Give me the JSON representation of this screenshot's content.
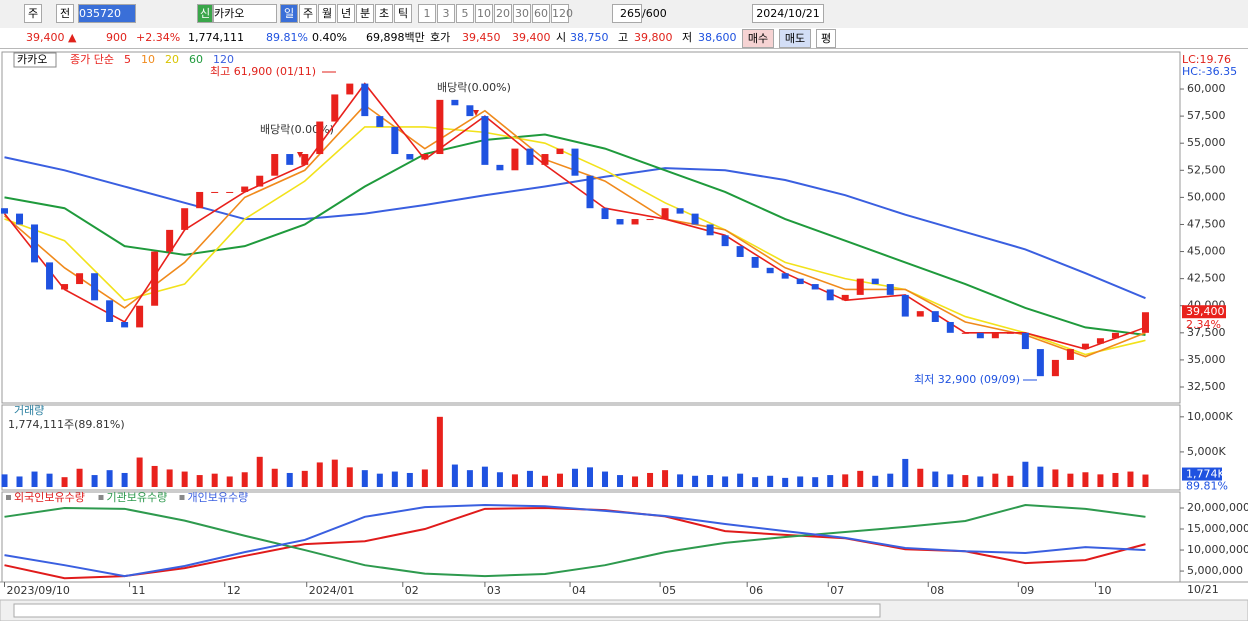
{
  "toolbar": {
    "period": "주",
    "prev": "전",
    "code": "035720",
    "new": "신",
    "name": "카카오",
    "intervals": [
      "일",
      "주",
      "월",
      "년",
      "분",
      "초",
      "틱"
    ],
    "counts": [
      "1",
      "3",
      "5",
      "10",
      "20",
      "30",
      "60",
      "120"
    ],
    "count": "265",
    "count_max": "/600",
    "date": "2024/10/21"
  },
  "quote": {
    "price": "39,400 ▲",
    "change": "900",
    "change_pct": "+2.34%",
    "volume": "1,774,111",
    "volume_ratio": "89.81%",
    "turnover": "0.40%",
    "amount": "69,898백만",
    "ask_label": "호가",
    "ask": "39,450",
    "bid": "39,400",
    "open_label": "시",
    "open": "38,750",
    "high_label": "고",
    "high": "39,800",
    "low_label": "저",
    "low": "38,600",
    "buy": "매수",
    "sell": "매도",
    "avg": "평"
  },
  "chart_data": [
    {
      "type": "candlestick",
      "name": "카카오",
      "legend_prefix": "종가 단순",
      "xlim": [
        -0.3,
        78.3
      ],
      "xticks": [
        {
          "value": 0,
          "label": "2023/09/10"
        },
        {
          "value": 8.33,
          "label": "11"
        },
        {
          "value": 14.67,
          "label": "12"
        },
        {
          "value": 20.13,
          "label": "2024/01"
        },
        {
          "value": 26.53,
          "label": "02"
        },
        {
          "value": 32,
          "label": "03"
        },
        {
          "value": 37.67,
          "label": "04"
        },
        {
          "value": 43.67,
          "label": "05"
        },
        {
          "value": 49.47,
          "label": "06"
        },
        {
          "value": 54.87,
          "label": "07"
        },
        {
          "value": 61.53,
          "label": "08"
        },
        {
          "value": 67.53,
          "label": "09"
        },
        {
          "value": 72.67,
          "label": "10"
        }
      ],
      "ylim": [
        31300,
        63140
      ],
      "yticks": [
        {
          "value": 32500,
          "label": "32,500"
        },
        {
          "value": 35000,
          "label": "35,000"
        },
        {
          "value": 37500,
          "label": "37,500"
        },
        {
          "value": 40000,
          "label": "40,000"
        },
        {
          "value": 42500,
          "label": "42,500"
        },
        {
          "value": 45000,
          "label": "45,000"
        },
        {
          "value": 47500,
          "label": "47,500"
        },
        {
          "value": 50000,
          "label": "50,000"
        },
        {
          "value": 52500,
          "label": "52,500"
        },
        {
          "value": 55000,
          "label": "55,000"
        },
        {
          "value": 57500,
          "label": "57,500"
        },
        {
          "value": 60000,
          "label": "60,000"
        }
      ],
      "open": [
        49000,
        48500,
        47500,
        44000,
        41500,
        42000,
        43000,
        40500,
        38500,
        38000,
        40000,
        45000,
        47000,
        49000,
        50500,
        50500,
        50500,
        51000,
        52000,
        54000,
        53000,
        54000,
        57000,
        59500,
        60500,
        57500,
        56500,
        54000,
        53500,
        54000,
        59000,
        58500,
        57500,
        53000,
        52500,
        54500,
        53000,
        54000,
        54500,
        52000,
        49000,
        48000,
        47500,
        48000,
        48000,
        49000,
        48500,
        47500,
        46500,
        45500,
        44500,
        43500,
        43000,
        42500,
        42000,
        41500,
        40500,
        41000,
        42500,
        42000,
        41000,
        39000,
        39500,
        38500,
        37500,
        37500,
        37000,
        37500,
        37500,
        36000,
        33500,
        35000,
        36000,
        36500,
        37000,
        37500,
        37500
      ],
      "close": [
        48500,
        47500,
        44000,
        41500,
        42000,
        43000,
        40500,
        38500,
        38000,
        40000,
        45000,
        47000,
        49000,
        50500,
        50500,
        50500,
        51000,
        52000,
        54000,
        53000,
        54000,
        57000,
        59500,
        60500,
        57500,
        56500,
        54000,
        53500,
        54000,
        59000,
        58500,
        57500,
        53000,
        52500,
        54500,
        53000,
        54000,
        54500,
        52000,
        49000,
        48000,
        47500,
        48000,
        48000,
        49000,
        48500,
        47500,
        46500,
        45500,
        44500,
        43500,
        43000,
        42500,
        42000,
        41500,
        40500,
        41000,
        42500,
        42000,
        41000,
        39000,
        39500,
        38500,
        37500,
        37500,
        37000,
        37500,
        37500,
        36000,
        33500,
        35000,
        36000,
        36500,
        37000,
        37500,
        37500,
        39400
      ],
      "up_color": "#e8211c",
      "down_color": "#1f52e0",
      "ma_x": [
        0,
        4,
        8,
        12,
        16,
        20,
        24,
        28,
        32,
        36,
        40,
        44,
        48,
        52,
        56,
        60,
        64,
        68,
        72,
        76
      ],
      "series": [
        {
          "name": "5",
          "color": "#e8211c",
          "values": [
            48500,
            41500,
            38500,
            47000,
            50500,
            53000,
            60500,
            53500,
            57500,
            53000,
            49000,
            48000,
            46500,
            43000,
            40500,
            41000,
            37500,
            37500,
            36000,
            38000
          ]
        },
        {
          "name": "10",
          "color": "#f08a1c",
          "values": [
            48300,
            43500,
            39800,
            44000,
            50000,
            52500,
            58500,
            54500,
            58000,
            53500,
            51500,
            48000,
            47000,
            43500,
            41500,
            41500,
            38500,
            37300,
            35300,
            37500
          ]
        },
        {
          "name": "20",
          "color": "#f2e21b",
          "values": [
            48000,
            46000,
            40500,
            42000,
            48000,
            51500,
            56500,
            56500,
            56000,
            55000,
            52500,
            49500,
            47000,
            44000,
            42500,
            41500,
            39000,
            37500,
            35500,
            36800
          ]
        },
        {
          "name": "60",
          "color": "#1f9a3c",
          "values": [
            50000,
            49000,
            45500,
            44700,
            45500,
            47500,
            51000,
            54000,
            55300,
            55800,
            54500,
            52500,
            50500,
            48000,
            46000,
            44000,
            42000,
            39800,
            38000,
            37300
          ]
        },
        {
          "name": "120",
          "color": "#3a5fe0",
          "values": [
            53700,
            52500,
            51000,
            49500,
            48000,
            48000,
            48500,
            49300,
            50200,
            51000,
            51900,
            52700,
            52500,
            51600,
            50200,
            48400,
            46800,
            45200,
            43000,
            40700
          ]
        }
      ],
      "annotations": [
        "최고 61,900 (01/11)",
        "배당락(0.00%)",
        "배당락(0.00%)",
        "최저 32,900 (09/09)"
      ],
      "lc": "LC:19.76",
      "hc": "HC:-36.35",
      "last_label": "39,400",
      "last_change": "2.34%"
    },
    {
      "type": "bar",
      "title": "거래량",
      "subtitle": "1,774,111주(89.81%)",
      "ylim": [
        0,
        11400
      ],
      "yticks": [
        {
          "value": 5000,
          "label": "5,000K"
        },
        {
          "value": 10000,
          "label": "10,000K"
        }
      ],
      "values": [
        1800,
        1500,
        2200,
        1900,
        1400,
        2600,
        1700,
        2400,
        2000,
        4200,
        3000,
        2500,
        2200,
        1700,
        1900,
        1500,
        2100,
        4300,
        2600,
        2000,
        2300,
        3500,
        3900,
        2800,
        2400,
        1900,
        2200,
        2000,
        2500,
        10000,
        3200,
        2400,
        2900,
        2100,
        1800,
        2300,
        1600,
        1900,
        2600,
        2800,
        2200,
        1700,
        1500,
        2000,
        2400,
        1800,
        1600,
        1700,
        1500,
        1900,
        1400,
        1600,
        1300,
        1500,
        1400,
        1700,
        1800,
        2300,
        1600,
        1900,
        4000,
        2600,
        2200,
        1800,
        1700,
        1500,
        1900,
        1600,
        3600,
        2900,
        2500,
        1900,
        2100,
        1800,
        2000,
        2200,
        1774
      ],
      "last_label": "1,774K",
      "last_ratio": "89.81%"
    },
    {
      "type": "line",
      "ylim": [
        2400000,
        21900000
      ],
      "yticks": [
        {
          "value": 5000000,
          "label": "5,000,000"
        },
        {
          "value": 10000000,
          "label": "10,000,000"
        },
        {
          "value": 15000000,
          "label": "15,000,000"
        },
        {
          "value": 20000000,
          "label": "20,000,000"
        }
      ],
      "x": [
        0,
        4,
        8,
        12,
        16,
        20,
        24,
        28,
        32,
        36,
        40,
        44,
        48,
        52,
        56,
        60,
        64,
        68,
        72,
        76
      ],
      "series": [
        {
          "name": "외국인보유수량",
          "color": "#e01b1b",
          "values": [
            6400000,
            3300000,
            3800000,
            5700000,
            8600000,
            11400000,
            12100000,
            15000000,
            19800000,
            20000000,
            19500000,
            18000000,
            14500000,
            13600000,
            12800000,
            10200000,
            9700000,
            6900000,
            7600000,
            11400000
          ]
        },
        {
          "name": "기관보유수량",
          "color": "#2e9a4e",
          "values": [
            17900000,
            20000000,
            19800000,
            17000000,
            13400000,
            10000000,
            6400000,
            4400000,
            3800000,
            4300000,
            6400000,
            9500000,
            11700000,
            13100000,
            14300000,
            15500000,
            16900000,
            20700000,
            19800000,
            17900000
          ]
        },
        {
          "name": "개인보유수량",
          "color": "#3a5fe0",
          "values": [
            8800000,
            6400000,
            3800000,
            6200000,
            9500000,
            12400000,
            17900000,
            20200000,
            20700000,
            20400000,
            19300000,
            18100000,
            16200000,
            14500000,
            12900000,
            10500000,
            9700000,
            9300000,
            10700000,
            10000000
          ]
        }
      ]
    }
  ],
  "x_axis_end": "10/21"
}
